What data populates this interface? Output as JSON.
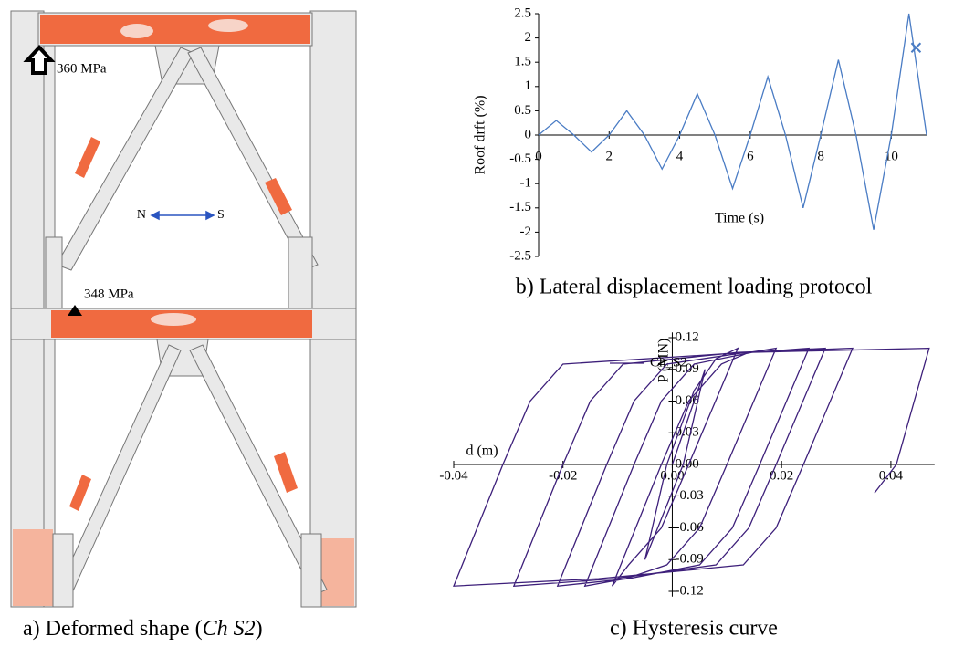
{
  "figure_a": {
    "caption_prefix": "a) Deformed shape (",
    "caption_italic": "Ch  S2",
    "caption_suffix": ")",
    "annotations": [
      "360 MPa",
      "348 MPa"
    ],
    "direction": {
      "left": "N",
      "right": "S"
    }
  },
  "chart_data": [
    {
      "type": "line",
      "caption": "b) Lateral displacement loading protocol",
      "x_label": "Time (s)",
      "y_label": "Roof drft (%)",
      "x": [
        0,
        0.5,
        1,
        1.5,
        2,
        2.5,
        3,
        3.5,
        4,
        4.5,
        5,
        5.5,
        6,
        6.5,
        7,
        7.5,
        8,
        8.5,
        9,
        9.5,
        10,
        10.5,
        11
      ],
      "series": [
        {
          "color": "#4a7cc4",
          "values": [
            0,
            0.3,
            0,
            -0.35,
            0,
            0.5,
            0,
            -0.7,
            0,
            0.85,
            0,
            -1.1,
            0,
            1.2,
            0,
            -1.5,
            0,
            1.55,
            0,
            -1.95,
            0,
            2.5,
            0
          ]
        }
      ],
      "marker": {
        "x": 10.7,
        "y": 1.8
      },
      "xlim": [
        0,
        11
      ],
      "ylim": [
        -2.5,
        2.5
      ],
      "xticks": [
        0,
        2,
        4,
        6,
        8,
        10
      ],
      "yticks": [
        2.5,
        2,
        1.5,
        1,
        0.5,
        0,
        -0.5,
        -1,
        -1.5,
        -2,
        -2.5
      ]
    },
    {
      "type": "line",
      "caption": "c) Hysteresis curve",
      "x_label": "d (m)",
      "y_label": "P (MN)",
      "series": [
        {
          "name": "Ch_S2",
          "color": "#3d1f7a",
          "x": [
            0,
            0.006,
            0.002,
            -0.005,
            -0.001,
            0.004,
            0.008,
            0.012,
            0.003,
            -0.002,
            -0.008,
            -0.011,
            -0.002,
            0.003,
            0.009,
            0.014,
            0.019,
            0.01,
            0.005,
            -0.001,
            -0.0085,
            -0.016,
            -0.007,
            -0.002,
            0.004,
            0.0145,
            0.025,
            0.016,
            0.011,
            0.005,
            -0.008,
            -0.021,
            -0.012,
            -0.007,
            -0.001,
            0.0135,
            0.028,
            0.019,
            0.014,
            0.008,
            -0.0105,
            -0.029,
            -0.02,
            -0.015,
            -0.009,
            0.012,
            0.033,
            0.024,
            0.019,
            0.013,
            -0.0135,
            -0.04,
            -0.031,
            -0.026,
            -0.02,
            0.0135,
            0.047,
            0.041,
            0.037
          ],
          "values": [
            0,
            0.09,
            0,
            -0.09,
            0,
            0.07,
            0.1,
            0.11,
            0,
            -0.06,
            -0.095,
            -0.115,
            0,
            0.06,
            0.095,
            0.106,
            0.11,
            0,
            -0.06,
            -0.095,
            -0.108,
            -0.115,
            0,
            0.06,
            0.095,
            0.106,
            0.11,
            0,
            -0.06,
            -0.095,
            -0.108,
            -0.115,
            0,
            0.06,
            0.095,
            0.106,
            0.11,
            0,
            -0.06,
            -0.095,
            -0.108,
            -0.115,
            0,
            0.06,
            0.095,
            0.106,
            0.11,
            0,
            -0.06,
            -0.095,
            -0.108,
            -0.115,
            0,
            0.06,
            0.095,
            0.106,
            0.11,
            0,
            -0.027
          ]
        }
      ],
      "xlim": [
        -0.04,
        0.048
      ],
      "ylim": [
        -0.125,
        0.125
      ],
      "xticks": [
        -0.04,
        -0.02,
        {
          "value": 0,
          "label": "0.00"
        },
        0.02,
        0.04
      ],
      "yticks": [
        0.12,
        0.09,
        0.06,
        0.03,
        {
          "value": 0,
          "label": "0.00"
        },
        -0.03,
        -0.06,
        -0.09,
        -0.12
      ]
    }
  ]
}
